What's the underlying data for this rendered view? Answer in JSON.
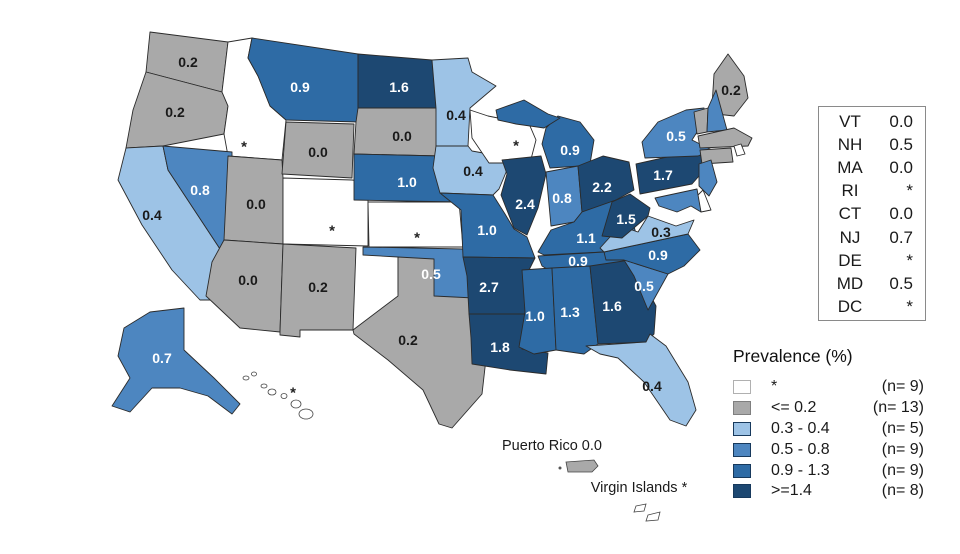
{
  "legend": {
    "title": "Prevalence (%)",
    "items": [
      {
        "category": "star",
        "label": "*",
        "n": "(n= 9)"
      },
      {
        "category": "low",
        "label": "<= 0.2",
        "n": "(n= 13)"
      },
      {
        "category": "c34",
        "label": "0.3 - 0.4",
        "n": "(n= 5)"
      },
      {
        "category": "c58",
        "label": "0.5 - 0.8",
        "n": "(n= 9)"
      },
      {
        "category": "c913",
        "label": "0.9 - 1.3",
        "n": "(n= 9)"
      },
      {
        "category": "c14",
        "label": ">=1.4",
        "n": "(n= 8)"
      }
    ]
  },
  "colors": {
    "star": "#ffffff",
    "low": "#a9a9a9",
    "c34": "#9dc3e6",
    "c58": "#4d86c0",
    "c913": "#2e6ba5",
    "c14": "#1d4872"
  },
  "side_panel": {
    "rows": [
      {
        "code": "VT",
        "value": "0.0"
      },
      {
        "code": "NH",
        "value": "0.5"
      },
      {
        "code": "MA",
        "value": "0.0"
      },
      {
        "code": "RI",
        "value": "*"
      },
      {
        "code": "CT",
        "value": "0.0"
      },
      {
        "code": "NJ",
        "value": "0.7"
      },
      {
        "code": "DE",
        "value": "*"
      },
      {
        "code": "MD",
        "value": "0.5"
      },
      {
        "code": "DC",
        "value": "*"
      }
    ]
  },
  "chart_data": {
    "type": "choropleth",
    "region": "United States",
    "title": "Prevalence (%)",
    "legend_bins": [
      "*",
      "<= 0.2",
      "0.3 - 0.4",
      "0.5 - 0.8",
      "0.9 - 1.3",
      ">=1.4"
    ],
    "states": [
      {
        "id": "WA",
        "value": "0.2",
        "category": "low"
      },
      {
        "id": "OR",
        "value": "0.2",
        "category": "low"
      },
      {
        "id": "CA",
        "value": "0.4",
        "category": "c34"
      },
      {
        "id": "ID",
        "value": "*",
        "category": "star"
      },
      {
        "id": "NV",
        "value": "0.8",
        "category": "c58"
      },
      {
        "id": "UT",
        "value": "0.0",
        "category": "low"
      },
      {
        "id": "AZ",
        "value": "0.0",
        "category": "low"
      },
      {
        "id": "MT",
        "value": "0.9",
        "category": "c913"
      },
      {
        "id": "WY",
        "value": "0.0",
        "category": "low"
      },
      {
        "id": "CO",
        "value": "*",
        "category": "star"
      },
      {
        "id": "NM",
        "value": "0.2",
        "category": "low"
      },
      {
        "id": "ND",
        "value": "1.6",
        "category": "c14"
      },
      {
        "id": "SD",
        "value": "0.0",
        "category": "low"
      },
      {
        "id": "NE",
        "value": "1.0",
        "category": "c913"
      },
      {
        "id": "KS",
        "value": "*",
        "category": "star"
      },
      {
        "id": "OK",
        "value": "0.5",
        "category": "c58"
      },
      {
        "id": "TX",
        "value": "0.2",
        "category": "low"
      },
      {
        "id": "MN",
        "value": "0.4",
        "category": "c34"
      },
      {
        "id": "IA",
        "value": "0.4",
        "category": "c34"
      },
      {
        "id": "MO",
        "value": "1.0",
        "category": "c913"
      },
      {
        "id": "AR",
        "value": "2.7",
        "category": "c14"
      },
      {
        "id": "LA",
        "value": "1.8",
        "category": "c14"
      },
      {
        "id": "WI",
        "value": "*",
        "category": "star"
      },
      {
        "id": "IL",
        "value": "2.4",
        "category": "c14"
      },
      {
        "id": "MI",
        "value": "0.9",
        "category": "c913"
      },
      {
        "id": "IN",
        "value": "0.8",
        "category": "c58"
      },
      {
        "id": "OH",
        "value": "2.2",
        "category": "c14"
      },
      {
        "id": "KY",
        "value": "1.1",
        "category": "c913"
      },
      {
        "id": "TN",
        "value": "0.9",
        "category": "c913"
      },
      {
        "id": "MS",
        "value": "1.0",
        "category": "c913"
      },
      {
        "id": "AL",
        "value": "1.3",
        "category": "c913"
      },
      {
        "id": "GA",
        "value": "1.6",
        "category": "c14"
      },
      {
        "id": "FL",
        "value": "0.4",
        "category": "c34"
      },
      {
        "id": "SC",
        "value": "0.5",
        "category": "c58"
      },
      {
        "id": "NC",
        "value": "0.9",
        "category": "c913"
      },
      {
        "id": "VA",
        "value": "0.3",
        "category": "c34"
      },
      {
        "id": "WV",
        "value": "1.5",
        "category": "c14"
      },
      {
        "id": "PA",
        "value": "1.7",
        "category": "c14"
      },
      {
        "id": "NY",
        "value": "0.5",
        "category": "c58"
      },
      {
        "id": "ME",
        "value": "0.2",
        "category": "low"
      },
      {
        "id": "VT",
        "value": "0.0",
        "category": "low"
      },
      {
        "id": "NH",
        "value": "0.5",
        "category": "c58"
      },
      {
        "id": "MA",
        "value": "0.0",
        "category": "low"
      },
      {
        "id": "RI",
        "value": "*",
        "category": "star"
      },
      {
        "id": "CT",
        "value": "0.0",
        "category": "low"
      },
      {
        "id": "NJ",
        "value": "0.7",
        "category": "c58"
      },
      {
        "id": "DE",
        "value": "*",
        "category": "star"
      },
      {
        "id": "MD",
        "value": "0.5",
        "category": "c58"
      },
      {
        "id": "DC",
        "value": "*",
        "category": "star"
      },
      {
        "id": "AK",
        "value": "0.7",
        "category": "c58"
      },
      {
        "id": "HI",
        "value": "*",
        "category": "star"
      }
    ],
    "territories": [
      {
        "id": "PR",
        "name": "Puerto Rico",
        "value": "0.0",
        "category": "low"
      },
      {
        "id": "VI",
        "name": "Virgin Islands",
        "value": "*",
        "category": "star"
      }
    ]
  }
}
